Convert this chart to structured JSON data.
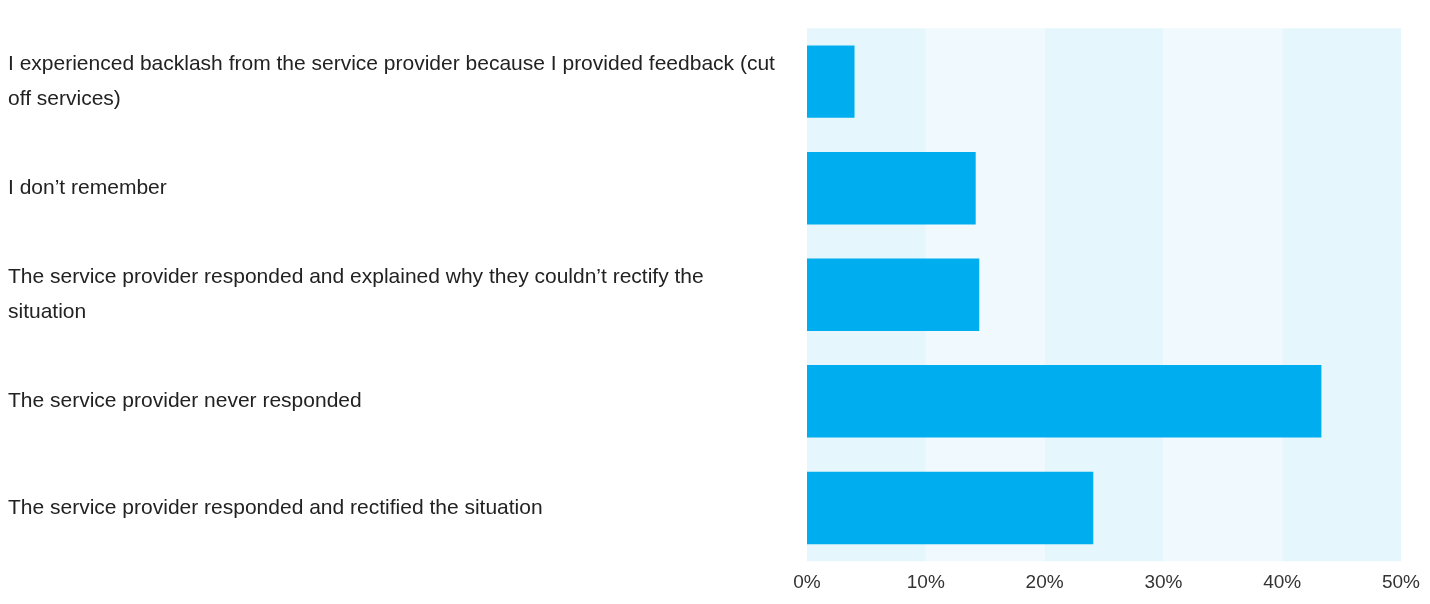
{
  "chart_data": {
    "type": "bar",
    "orientation": "horizontal",
    "categories": [
      "I experienced backlash from the service provider because I provided feedback (cut off services)",
      "I don’t remember",
      "The service provider responded and explained why they couldn’t rectify the situation",
      "The service provider never responded",
      "The service provider responded and rectified the situation"
    ],
    "values": [
      4.0,
      14.2,
      14.5,
      43.3,
      24.1
    ],
    "color": "#00aeef",
    "xlim": [
      0,
      50
    ],
    "xticks": [
      {
        "value": 0,
        "label": "0%"
      },
      {
        "value": 10,
        "label": "10%"
      },
      {
        "value": 20,
        "label": "20%"
      },
      {
        "value": 30,
        "label": "30%"
      },
      {
        "value": 40,
        "label": "40%"
      },
      {
        "value": 50,
        "label": "50%"
      }
    ],
    "bands": [
      {
        "axis": "x",
        "from": 0,
        "to": 10,
        "color": "#e5f6fd"
      },
      {
        "axis": "x",
        "from": 10,
        "to": 20,
        "color": "#f0f9fd"
      },
      {
        "axis": "x",
        "from": 20,
        "to": 30,
        "color": "#e5f6fd"
      },
      {
        "axis": "x",
        "from": 30,
        "to": 40,
        "color": "#f0f9fd"
      },
      {
        "axis": "x",
        "from": 40,
        "to": 50,
        "color": "#e5f6fd"
      }
    ],
    "legend": false
  }
}
